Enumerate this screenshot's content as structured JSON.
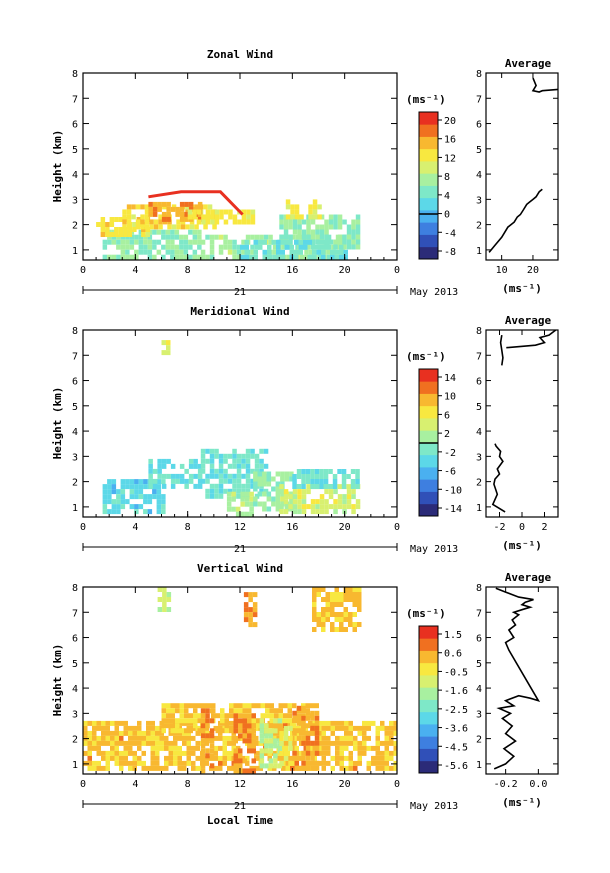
{
  "figure": {
    "x_axis_label": "Local Time",
    "date_label": "21",
    "month_label": "May 2013"
  },
  "colors": {
    "zonal_scale": [
      "#2b2b78",
      "#3050b8",
      "#3e7fe0",
      "#4ab0f0",
      "#5cd8e8",
      "#7ee8c8",
      "#a8f0a0",
      "#d8f070",
      "#f8e840",
      "#f8b830",
      "#f07020",
      "#e83020"
    ],
    "meridional_scale": [
      "#2b2b78",
      "#3050b8",
      "#3e7fe0",
      "#4ab0f0",
      "#5cd8e8",
      "#7ee8c8",
      "#a8f0a0",
      "#d8f070",
      "#f8e840",
      "#f8b830",
      "#f07020",
      "#e83020"
    ],
    "vertical_scale": [
      "#2b2b78",
      "#3050b8",
      "#3e7fe0",
      "#4ab0f0",
      "#5cd8e8",
      "#7ee8c8",
      "#a8f0a0",
      "#d8f070",
      "#f8e840",
      "#f8b830",
      "#f07020",
      "#e83020"
    ]
  },
  "chart_data": [
    {
      "type": "heatmap",
      "title": "Zonal Wind",
      "xlabel": "",
      "ylabel": "Height (km)",
      "xlim": [
        0,
        24
      ],
      "ylim": [
        0.6,
        8
      ],
      "xticks": [
        "0",
        "4",
        "8",
        "12",
        "16",
        "20",
        "0"
      ],
      "yticks": [
        "1",
        "2",
        "3",
        "4",
        "5",
        "6",
        "7",
        "8"
      ],
      "colorbar": {
        "unit": "(ms⁻¹)",
        "range": [
          -10,
          22
        ],
        "ticks": [
          "20",
          "16",
          "12",
          "8",
          "4",
          "0",
          "-4",
          "-8"
        ],
        "contour": 0
      },
      "regions": [
        {
          "x": [
            1.5,
            9
          ],
          "y": [
            0.8,
            1.8
          ],
          "value": 6
        },
        {
          "x": [
            1.0,
            5
          ],
          "y": [
            1.7,
            2.3
          ],
          "value": 13
        },
        {
          "x": [
            3.0,
            10
          ],
          "y": [
            1.9,
            2.8
          ],
          "value": 13
        },
        {
          "x": [
            5.0,
            9
          ],
          "y": [
            2.2,
            2.9
          ],
          "value": 16
        },
        {
          "x": [
            8.0,
            13
          ],
          "y": [
            2.1,
            2.6
          ],
          "value": 12
        },
        {
          "x": [
            9.0,
            20
          ],
          "y": [
            0.8,
            1.6
          ],
          "value": 7
        },
        {
          "x": [
            15.0,
            21
          ],
          "y": [
            1.2,
            2.4
          ],
          "value": 6
        },
        {
          "x": [
            15.5,
            18
          ],
          "y": [
            2.4,
            3.0
          ],
          "value": 12
        },
        {
          "x": [
            12.0,
            20
          ],
          "y": [
            0.8,
            1.4
          ],
          "value": 4
        }
      ],
      "outline": [
        [
          5.0,
          3.1
        ],
        [
          7.5,
          3.3
        ],
        [
          10.5,
          3.3
        ],
        [
          12.2,
          2.4
        ]
      ]
    },
    {
      "type": "heatmap",
      "title": "Meridional Wind",
      "xlabel": "",
      "ylabel": "Height (km)",
      "xlim": [
        0,
        24
      ],
      "ylim": [
        0.6,
        8
      ],
      "xticks": [
        "0",
        "4",
        "8",
        "12",
        "16",
        "20",
        "0"
      ],
      "yticks": [
        "1",
        "2",
        "3",
        "4",
        "5",
        "6",
        "7",
        "8"
      ],
      "colorbar": {
        "unit": "(ms⁻¹)",
        "range": [
          -16,
          16
        ],
        "ticks": [
          "14",
          "10",
          "6",
          "2",
          "-2",
          "-6",
          "-10",
          "-14"
        ],
        "contour": 0
      },
      "regions": [
        {
          "x": [
            1.5,
            6
          ],
          "y": [
            0.9,
            2.1
          ],
          "value": -4
        },
        {
          "x": [
            5.0,
            9
          ],
          "y": [
            1.8,
            2.9
          ],
          "value": -3
        },
        {
          "x": [
            9.0,
            14
          ],
          "y": [
            1.5,
            3.3
          ],
          "value": -2
        },
        {
          "x": [
            11.0,
            13
          ],
          "y": [
            0.8,
            1.6
          ],
          "value": 2
        },
        {
          "x": [
            13.0,
            16
          ],
          "y": [
            0.9,
            2.4
          ],
          "value": 1
        },
        {
          "x": [
            15.0,
            21
          ],
          "y": [
            0.9,
            1.9
          ],
          "value": 4
        },
        {
          "x": [
            16.0,
            21
          ],
          "y": [
            1.8,
            2.5
          ],
          "value": -2
        },
        {
          "x": [
            6.0,
            6.4
          ],
          "y": [
            7.2,
            7.6
          ],
          "value": 4
        }
      ]
    },
    {
      "type": "heatmap",
      "title": "Vertical Wind",
      "xlabel": "Local Time",
      "ylabel": "Height (km)",
      "xlim": [
        0,
        24
      ],
      "ylim": [
        0.6,
        8
      ],
      "xticks": [
        "0",
        "4",
        "8",
        "12",
        "16",
        "20",
        "0"
      ],
      "yticks": [
        "1",
        "2",
        "3",
        "4",
        "5",
        "6",
        "7",
        "8"
      ],
      "colorbar": {
        "unit": "(ms⁻¹)",
        "range": [
          -6,
          2
        ],
        "ticks": [
          "1.5",
          "0.6",
          "-0.5",
          "-1.6",
          "-2.5",
          "-3.6",
          "-4.5",
          "-5.6"
        ]
      },
      "regions": [
        {
          "x": [
            0,
            24
          ],
          "y": [
            0.8,
            2.7
          ],
          "value": 0.2
        },
        {
          "x": [
            6.0,
            18
          ],
          "y": [
            2.4,
            3.4
          ],
          "value": 0.2
        },
        {
          "x": [
            9.0,
            10
          ],
          "y": [
            0.8,
            3.2
          ],
          "value": 0.6
        },
        {
          "x": [
            11.5,
            13
          ],
          "y": [
            0.8,
            3.0
          ],
          "value": 0.8
        },
        {
          "x": [
            13.5,
            15
          ],
          "y": [
            1.0,
            2.8
          ],
          "value": -1.5
        },
        {
          "x": [
            15.0,
            16
          ],
          "y": [
            1.0,
            2.5
          ],
          "value": -0.8
        },
        {
          "x": [
            16.0,
            18
          ],
          "y": [
            0.8,
            3.3
          ],
          "value": 0.5
        },
        {
          "x": [
            5.7,
            6.5
          ],
          "y": [
            7.2,
            8.0
          ],
          "value": -1.2
        },
        {
          "x": [
            12.3,
            13
          ],
          "y": [
            6.6,
            7.8
          ],
          "value": 0.5
        },
        {
          "x": [
            17.5,
            21
          ],
          "y": [
            6.4,
            8.0
          ],
          "value": 0.1
        }
      ]
    },
    {
      "type": "line",
      "title": "Average",
      "xlabel": "(ms⁻¹)",
      "ylabel": "",
      "xlim": [
        5,
        28
      ],
      "ylim": [
        0.6,
        8
      ],
      "xticks": [
        "10",
        "20"
      ],
      "yticks": [
        "1",
        "2",
        "3",
        "4",
        "5",
        "6",
        "7",
        "8"
      ],
      "series": [
        {
          "x": [
            6,
            8,
            10,
            11,
            12,
            14,
            15,
            16,
            17,
            18,
            19,
            20,
            21,
            22,
            23
          ],
          "y": [
            0.9,
            1.2,
            1.5,
            1.7,
            1.9,
            2.1,
            2.3,
            2.4,
            2.6,
            2.8,
            2.9,
            3.0,
            3.1,
            3.3,
            3.4
          ]
        },
        {
          "x": [
            20,
            21,
            20,
            22,
            23,
            28
          ],
          "y": [
            7.8,
            7.5,
            7.3,
            7.25,
            7.3,
            7.35
          ]
        }
      ]
    },
    {
      "type": "line",
      "title": "Average",
      "xlabel": "(ms⁻¹)",
      "ylabel": "",
      "xlim": [
        -3.2,
        3.2
      ],
      "ylim": [
        0.6,
        8
      ],
      "xticks": [
        "-2",
        "0",
        "2"
      ],
      "yticks": [
        "1",
        "2",
        "3",
        "4",
        "5",
        "6",
        "7",
        "8"
      ],
      "series": [
        {
          "x": [
            -1.5,
            -2.6,
            -2.2,
            -2.5,
            -2.4,
            -2.0,
            -2.2,
            -1.7,
            -2.0,
            -1.9,
            -2.3,
            -2.4
          ],
          "y": [
            0.8,
            1.1,
            1.5,
            1.9,
            2.1,
            2.3,
            2.5,
            2.8,
            3.0,
            3.2,
            3.4,
            3.5
          ]
        },
        {
          "x": [
            -1.8,
            -1.9,
            -1.8,
            -1.7,
            -1.8
          ],
          "y": [
            7.8,
            7.5,
            7.2,
            6.9,
            6.6
          ]
        },
        {
          "x": [
            -1.4,
            1.2,
            2.0,
            1.6,
            2.4,
            3.0
          ],
          "y": [
            7.3,
            7.4,
            7.5,
            7.7,
            7.8,
            8.0
          ]
        }
      ]
    },
    {
      "type": "line",
      "title": "Average",
      "xlabel": "(ms⁻¹)",
      "ylabel": "",
      "xlim": [
        -0.32,
        0.12
      ],
      "ylim": [
        0.6,
        8
      ],
      "xticks": [
        "-0.2",
        "0.0"
      ],
      "yticks": [
        "1",
        "2",
        "3",
        "4",
        "5",
        "6",
        "7",
        "8"
      ],
      "series": [
        {
          "x": [
            -0.27,
            -0.2,
            -0.15,
            -0.21,
            -0.14,
            -0.2,
            -0.16,
            -0.22,
            -0.17,
            -0.24,
            -0.15,
            -0.2,
            -0.12,
            -0.05,
            0.0,
            -0.18,
            -0.2,
            -0.15,
            -0.18,
            -0.14,
            -0.16,
            -0.12,
            -0.15,
            -0.1,
            -0.05,
            -0.1,
            -0.08,
            -0.03,
            -0.12,
            -0.2,
            -0.26
          ],
          "y": [
            0.8,
            1.0,
            1.3,
            1.6,
            1.9,
            2.2,
            2.5,
            2.8,
            3.0,
            3.2,
            3.3,
            3.5,
            3.7,
            3.6,
            3.5,
            5.5,
            5.8,
            6.0,
            6.3,
            6.5,
            6.7,
            6.9,
            7.0,
            7.1,
            7.2,
            7.3,
            7.4,
            7.5,
            7.6,
            7.8,
            7.95
          ]
        }
      ]
    }
  ]
}
